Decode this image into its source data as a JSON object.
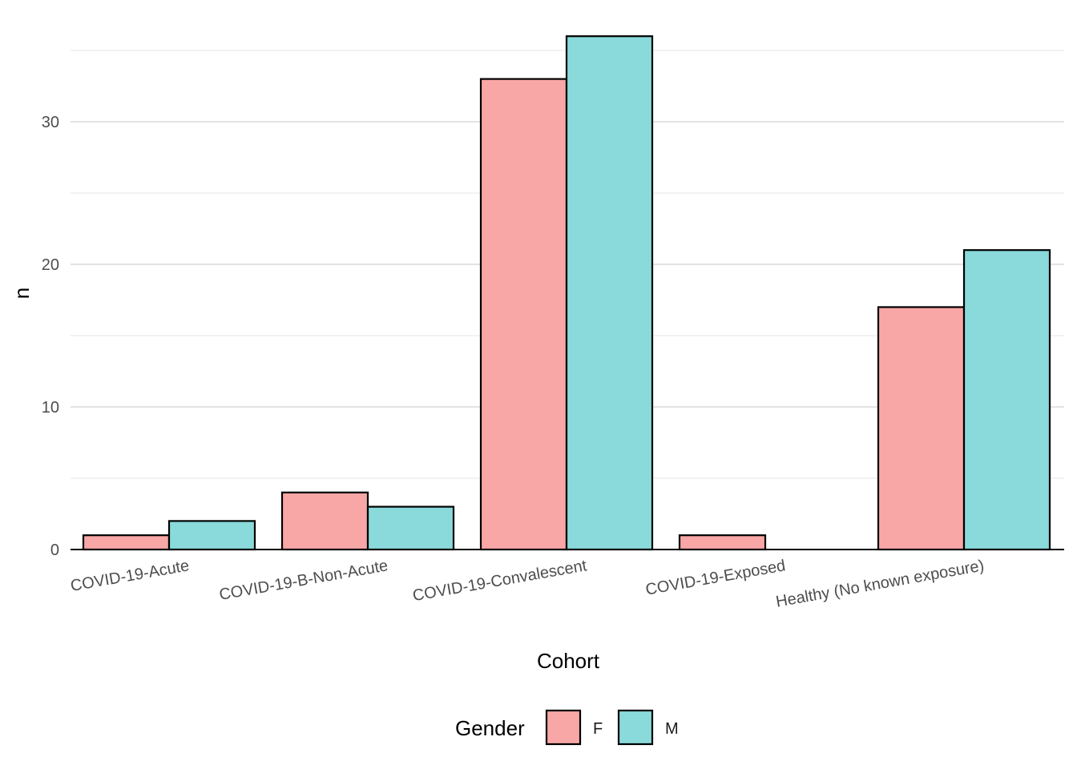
{
  "chart_data": {
    "type": "bar",
    "title": "",
    "xlabel": "Cohort",
    "ylabel": "n",
    "categories": [
      "COVID-19-Acute",
      "COVID-19-B-Non-Acute",
      "COVID-19-Convalescent",
      "COVID-19-Exposed",
      "Healthy (No known exposure)"
    ],
    "series": [
      {
        "name": "F",
        "values": [
          1,
          4,
          33,
          1,
          null
        ],
        "color": "#F8A6A6"
      },
      {
        "name": "M",
        "values": [
          2,
          3,
          36,
          null,
          21
        ],
        "color": "#8AD9DB"
      }
    ],
    "healthy_f_value": 17,
    "ylim": [
      0,
      35
    ],
    "yticks": [
      0,
      10,
      20,
      30
    ],
    "grid": true,
    "legend": {
      "title": "Gender",
      "position": "bottom"
    }
  }
}
